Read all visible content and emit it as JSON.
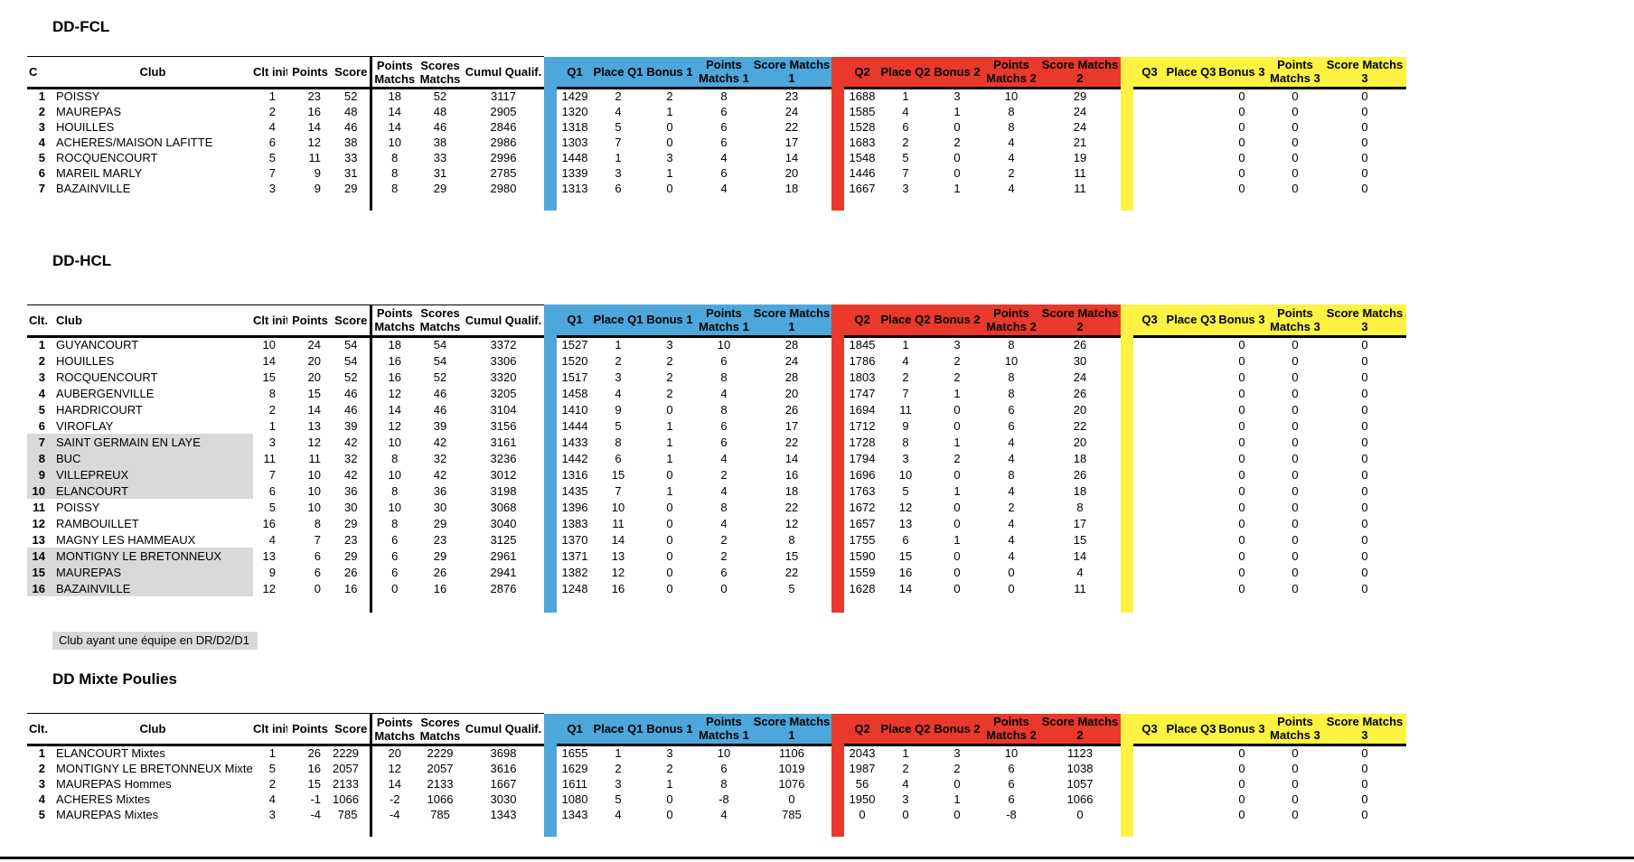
{
  "legend": "Club ayant une équipe en DR/D2/D1",
  "colors": {
    "q1_blue": "#4DA7DB",
    "q2_red": "#E8392C",
    "q3_yellow": "#FEF243",
    "highlight_gray": "#D9D9D9"
  },
  "common_headers": {
    "club": "Club",
    "clt_init": "Clt init",
    "points": "Points",
    "score": "Score",
    "points_matchs": "Points\nMatchs",
    "scores_matchs": "Scores\nMatchs",
    "cumul": "Cumul Qualif.",
    "q1": [
      "Q1",
      "Place Q1",
      "Bonus 1",
      "Points\nMatchs 1",
      "Score Matchs\n1"
    ],
    "q2": [
      "Q2",
      "Place Q2",
      "Bonus 2",
      "Points\nMatchs 2",
      "Score Matchs\n2"
    ],
    "q3": [
      "Q3",
      "Place Q3",
      "Bonus 3",
      "Points\nMatchs 3",
      "Score Matchs\n3"
    ]
  },
  "tables": [
    {
      "title": "DD-FCL",
      "rank_header": "C",
      "highlight_rows": [],
      "rows": [
        [
          1,
          "POISSY",
          1,
          23,
          52,
          18,
          52,
          3117,
          1429,
          2,
          2,
          8,
          23,
          1688,
          1,
          3,
          10,
          29,
          "",
          "",
          0,
          0,
          0
        ],
        [
          2,
          "MAUREPAS",
          2,
          16,
          48,
          14,
          48,
          2905,
          1320,
          4,
          1,
          6,
          24,
          1585,
          4,
          1,
          8,
          24,
          "",
          "",
          0,
          0,
          0
        ],
        [
          3,
          "HOUILLES",
          4,
          14,
          46,
          14,
          46,
          2846,
          1318,
          5,
          0,
          6,
          22,
          1528,
          6,
          0,
          8,
          24,
          "",
          "",
          0,
          0,
          0
        ],
        [
          4,
          "ACHERES/MAISON LAFITTE",
          6,
          12,
          38,
          10,
          38,
          2986,
          1303,
          7,
          0,
          6,
          17,
          1683,
          2,
          2,
          4,
          21,
          "",
          "",
          0,
          0,
          0
        ],
        [
          5,
          "ROCQUENCOURT",
          5,
          11,
          33,
          8,
          33,
          2996,
          1448,
          1,
          3,
          4,
          14,
          1548,
          5,
          0,
          4,
          19,
          "",
          "",
          0,
          0,
          0
        ],
        [
          6,
          "MAREIL MARLY",
          7,
          9,
          31,
          8,
          31,
          2785,
          1339,
          3,
          1,
          6,
          20,
          1446,
          7,
          0,
          2,
          11,
          "",
          "",
          0,
          0,
          0
        ],
        [
          7,
          "BAZAINVILLE",
          3,
          9,
          29,
          8,
          29,
          2980,
          1313,
          6,
          0,
          4,
          18,
          1667,
          3,
          1,
          4,
          11,
          "",
          "",
          0,
          0,
          0
        ]
      ]
    },
    {
      "title": "DD-HCL",
      "rank_header": "Clt.",
      "highlight_rows": [
        7,
        8,
        9,
        10,
        14,
        15,
        16
      ],
      "rows": [
        [
          1,
          "GUYANCOURT",
          10,
          24,
          54,
          18,
          54,
          3372,
          1527,
          1,
          3,
          10,
          28,
          1845,
          1,
          3,
          8,
          26,
          "",
          "",
          0,
          0,
          0
        ],
        [
          2,
          "HOUILLES",
          14,
          20,
          54,
          16,
          54,
          3306,
          1520,
          2,
          2,
          6,
          24,
          1786,
          4,
          2,
          10,
          30,
          "",
          "",
          0,
          0,
          0
        ],
        [
          3,
          "ROCQUENCOURT",
          15,
          20,
          52,
          16,
          52,
          3320,
          1517,
          3,
          2,
          8,
          28,
          1803,
          2,
          2,
          8,
          24,
          "",
          "",
          0,
          0,
          0
        ],
        [
          4,
          "AUBERGENVILLE",
          8,
          15,
          46,
          12,
          46,
          3205,
          1458,
          4,
          2,
          4,
          20,
          1747,
          7,
          1,
          8,
          26,
          "",
          "",
          0,
          0,
          0
        ],
        [
          5,
          "HARDRICOURT",
          2,
          14,
          46,
          14,
          46,
          3104,
          1410,
          9,
          0,
          8,
          26,
          1694,
          11,
          0,
          6,
          20,
          "",
          "",
          0,
          0,
          0
        ],
        [
          6,
          "VIROFLAY",
          1,
          13,
          39,
          12,
          39,
          3156,
          1444,
          5,
          1,
          6,
          17,
          1712,
          9,
          0,
          6,
          22,
          "",
          "",
          0,
          0,
          0
        ],
        [
          7,
          "SAINT GERMAIN EN LAYE",
          3,
          12,
          42,
          10,
          42,
          3161,
          1433,
          8,
          1,
          6,
          22,
          1728,
          8,
          1,
          4,
          20,
          "",
          "",
          0,
          0,
          0
        ],
        [
          8,
          "BUC",
          11,
          11,
          32,
          8,
          32,
          3236,
          1442,
          6,
          1,
          4,
          14,
          1794,
          3,
          2,
          4,
          18,
          "",
          "",
          0,
          0,
          0
        ],
        [
          9,
          "VILLEPREUX",
          7,
          10,
          42,
          10,
          42,
          3012,
          1316,
          15,
          0,
          2,
          16,
          1696,
          10,
          0,
          8,
          26,
          "",
          "",
          0,
          0,
          0
        ],
        [
          10,
          "ELANCOURT",
          6,
          10,
          36,
          8,
          36,
          3198,
          1435,
          7,
          1,
          4,
          18,
          1763,
          5,
          1,
          4,
          18,
          "",
          "",
          0,
          0,
          0
        ],
        [
          11,
          "POISSY",
          5,
          10,
          30,
          10,
          30,
          3068,
          1396,
          10,
          0,
          8,
          22,
          1672,
          12,
          0,
          2,
          8,
          "",
          "",
          0,
          0,
          0
        ],
        [
          12,
          "RAMBOUILLET",
          16,
          8,
          29,
          8,
          29,
          3040,
          1383,
          11,
          0,
          4,
          12,
          1657,
          13,
          0,
          4,
          17,
          "",
          "",
          0,
          0,
          0
        ],
        [
          13,
          "MAGNY LES HAMMEAUX",
          4,
          7,
          23,
          6,
          23,
          3125,
          1370,
          14,
          0,
          2,
          8,
          1755,
          6,
          1,
          4,
          15,
          "",
          "",
          0,
          0,
          0
        ],
        [
          14,
          "MONTIGNY LE BRETONNEUX",
          13,
          6,
          29,
          6,
          29,
          2961,
          1371,
          13,
          0,
          2,
          15,
          1590,
          15,
          0,
          4,
          14,
          "",
          "",
          0,
          0,
          0
        ],
        [
          15,
          "MAUREPAS",
          9,
          6,
          26,
          6,
          26,
          2941,
          1382,
          12,
          0,
          6,
          22,
          1559,
          16,
          0,
          0,
          4,
          "",
          "",
          0,
          0,
          0
        ],
        [
          16,
          "BAZAINVILLE",
          12,
          0,
          16,
          0,
          16,
          2876,
          1248,
          16,
          0,
          0,
          5,
          1628,
          14,
          0,
          0,
          11,
          "",
          "",
          0,
          0,
          0
        ]
      ]
    },
    {
      "title": "DD Mixte Poulies",
      "rank_header": "Clt.",
      "highlight_rows": [],
      "rows": [
        [
          1,
          "ELANCOURT Mixtes",
          1,
          26,
          2229,
          20,
          2229,
          3698,
          1655,
          1,
          3,
          10,
          1106,
          2043,
          1,
          3,
          10,
          1123,
          "",
          "",
          0,
          0,
          0
        ],
        [
          2,
          "MONTIGNY LE BRETONNEUX Mixtes",
          5,
          16,
          2057,
          12,
          2057,
          3616,
          1629,
          2,
          2,
          6,
          1019,
          1987,
          2,
          2,
          6,
          1038,
          "",
          "",
          0,
          0,
          0
        ],
        [
          3,
          "MAUREPAS Hommes",
          2,
          15,
          2133,
          14,
          2133,
          1667,
          1611,
          3,
          1,
          8,
          1076,
          56,
          4,
          0,
          6,
          1057,
          "",
          "",
          0,
          0,
          0
        ],
        [
          4,
          "ACHERES Mixtes",
          4,
          -1,
          1066,
          -2,
          1066,
          3030,
          1080,
          5,
          0,
          -8,
          0,
          1950,
          3,
          1,
          6,
          1066,
          "",
          "",
          0,
          0,
          0
        ],
        [
          5,
          "MAUREPAS Mixtes",
          3,
          -4,
          785,
          -4,
          785,
          1343,
          1343,
          4,
          0,
          4,
          785,
          0,
          0,
          0,
          -8,
          0,
          "",
          "",
          0,
          0,
          0
        ]
      ]
    }
  ]
}
